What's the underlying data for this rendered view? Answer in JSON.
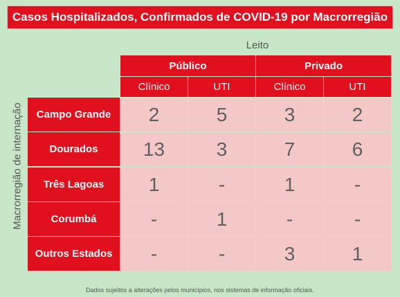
{
  "title": "Casos Hospitalizados, Confirmados de COVID-19 por Macrorregião",
  "column_axis_label": "Leito",
  "row_axis_label": "Macrorregião de internação",
  "footnote": "Dados sujeitos a alterações pelos municípios, nos sistemas de informação oficiais.",
  "colors": {
    "header": "#e0101e",
    "cell": "#f5c8c8",
    "background": "#c8e6c8"
  },
  "chart_data": {
    "type": "table",
    "title": "Casos Hospitalizados, Confirmados de COVID-19 por Macrorregião",
    "column_groups": [
      {
        "label": "Público",
        "columns": [
          "Clínico",
          "UTI"
        ]
      },
      {
        "label": "Privado",
        "columns": [
          "Clínico",
          "UTI"
        ]
      }
    ],
    "rows": [
      {
        "label": "Campo Grande",
        "values": [
          "2",
          "5",
          "3",
          "2"
        ]
      },
      {
        "label": "Dourados",
        "values": [
          "13",
          "3",
          "7",
          "6"
        ]
      },
      {
        "label": "Três Lagoas",
        "values": [
          "1",
          "-",
          "1",
          "-"
        ]
      },
      {
        "label": "Corumbá",
        "values": [
          "-",
          "1",
          "-",
          "-"
        ]
      },
      {
        "label": "Outros Estados",
        "values": [
          "-",
          "-",
          "3",
          "1"
        ]
      }
    ]
  }
}
